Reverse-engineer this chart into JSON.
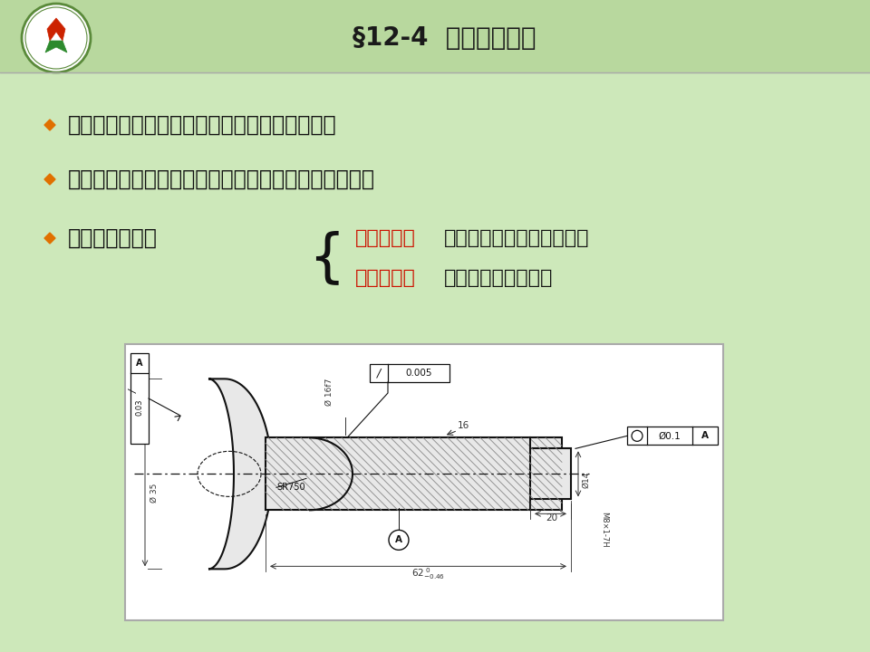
{
  "bg_color": "#cde8ba",
  "header_color": "#b8d89e",
  "title": "§12-4  零件加工质量",
  "title_fontsize": 20,
  "title_color": "#1a1a1a",
  "bullet_color": "#e07000",
  "text_color": "#111111",
  "red_color": "#cc1100",
  "b1": "每一种机械产品都是由相关的零件装配而成的。",
  "b2": "只有采用加工合格的零件，才能达到规定的性能要求。",
  "b3": "零件的加工质量",
  "line3_red1": "加工精度：",
  "line3_black1": "尺寸、形状、位置等要素。",
  "line3_red2": "表面质量：",
  "line3_black2": "微观表面粗糙程度。",
  "dim_color": "#333333",
  "line_color": "#111111",
  "white": "#ffffff",
  "hatch_color": "#555555",
  "gray_fill": "#e8e8e8"
}
